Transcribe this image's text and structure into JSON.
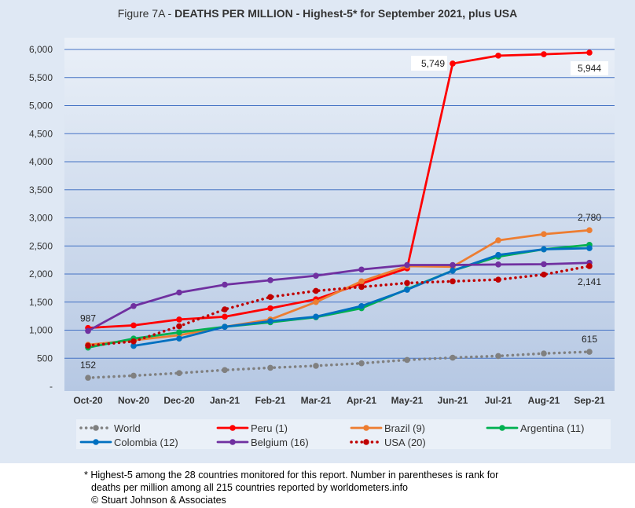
{
  "title": {
    "prefix": "Figure 7A - ",
    "main": "DEATHS PER MILLION - Highest-5* for September 2021, plus USA"
  },
  "footnote": {
    "line1": "* Highest-5 among the 28 countries monitored for this report. Number in parentheses is rank for",
    "line2": "deaths per million among all 215 countries reported by worldometers.info",
    "line3": "© Stuart Johnson & Associates"
  },
  "colors": {
    "background_panel": "#dfe8f4",
    "plot_gradient_top": "#eaf0f8",
    "plot_gradient_bottom": "#b6c8e3",
    "legend_bg": "#eaf0f8",
    "gridline": "#4472c4"
  },
  "chart_data": {
    "type": "line",
    "categories": [
      "Oct-20",
      "Nov-20",
      "Dec-20",
      "Jan-21",
      "Feb-21",
      "Mar-21",
      "Apr-21",
      "May-21",
      "Jun-21",
      "Jul-21",
      "Aug-21",
      "Sep-21"
    ],
    "ylim": [
      0,
      6000
    ],
    "yticks": [
      0,
      500,
      1000,
      1500,
      2000,
      2500,
      3000,
      3500,
      4000,
      4500,
      5000,
      5500,
      6000
    ],
    "ytick_labels": [
      "-",
      "500",
      "1,000",
      "1,500",
      "2,000",
      "2,500",
      "3,000",
      "3,500",
      "4,000",
      "4,500",
      "5,000",
      "5,500",
      "6,000"
    ],
    "grid": true,
    "legend_position": "bottom",
    "series": [
      {
        "name": "World",
        "color": "#808080",
        "style": "dotted",
        "values": [
          152,
          190,
          235,
          290,
          330,
          365,
          410,
          470,
          510,
          540,
          585,
          615
        ]
      },
      {
        "name": "Peru (1)",
        "color": "#ff0000",
        "style": "solid",
        "values": [
          1040,
          1085,
          1190,
          1240,
          1390,
          1550,
          1830,
          2100,
          5749,
          5890,
          5915,
          5944
        ]
      },
      {
        "name": "Brazil (9)",
        "color": "#ed7d31",
        "style": "solid",
        "values": [
          740,
          820,
          910,
          1060,
          1190,
          1500,
          1870,
          2140,
          2130,
          2600,
          2710,
          2780
        ]
      },
      {
        "name": "Argentina (11)",
        "color": "#00b050",
        "style": "solid",
        "values": [
          690,
          850,
          960,
          1060,
          1140,
          1230,
          1390,
          1730,
          2060,
          2310,
          2440,
          2520
        ]
      },
      {
        "name": "Colombia (12)",
        "color": "#0070c0",
        "style": "solid",
        "values": [
          null,
          720,
          850,
          1060,
          1160,
          1240,
          1430,
          1720,
          2060,
          2340,
          2440,
          2460
        ]
      },
      {
        "name": "Belgium (16)",
        "color": "#7030a0",
        "style": "solid",
        "values": [
          987,
          1430,
          1670,
          1810,
          1890,
          1970,
          2080,
          2160,
          2160,
          2170,
          2175,
          2200
        ]
      },
      {
        "name": "USA (20)",
        "color": "#c00000",
        "style": "dotted",
        "values": [
          725,
          800,
          1070,
          1370,
          1590,
          1700,
          1770,
          1840,
          1870,
          1900,
          1990,
          2141
        ]
      }
    ],
    "data_labels": [
      {
        "text": "987",
        "series": "Belgium (16)",
        "category": "Oct-20",
        "value": 987,
        "position": "above"
      },
      {
        "text": "152",
        "series": "World",
        "category": "Oct-20",
        "value": 152,
        "position": "above"
      },
      {
        "text": "5,749",
        "series": "Peru (1)",
        "category": "Jun-21",
        "value": 5749,
        "position": "left"
      },
      {
        "text": "5,944",
        "series": "Peru (1)",
        "category": "Sep-21",
        "value": 5944,
        "position": "below"
      },
      {
        "text": "2,780",
        "series": "Brazil (9)",
        "category": "Sep-21",
        "value": 2780,
        "position": "above"
      },
      {
        "text": "2,141",
        "series": "USA (20)",
        "category": "Sep-21",
        "value": 2141,
        "position": "below"
      },
      {
        "text": "615",
        "series": "World",
        "category": "Sep-21",
        "value": 615,
        "position": "above"
      }
    ]
  }
}
